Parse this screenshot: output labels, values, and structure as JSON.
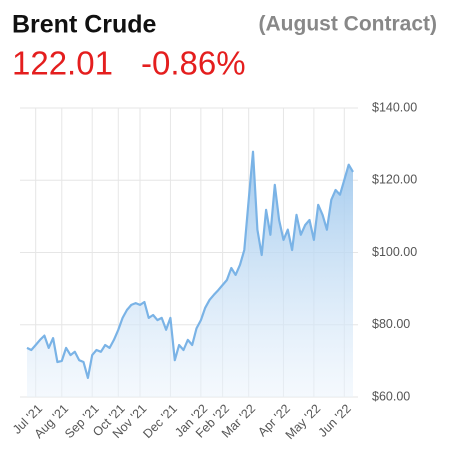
{
  "chart_data": {
    "type": "line",
    "title": "Brent Crude",
    "subtitle": "(August Contract)",
    "price": "122.01",
    "change": "-0.86%",
    "categories": [
      null,
      null,
      "Jul '21",
      null,
      null,
      null,
      null,
      null,
      "Aug '21",
      null,
      null,
      null,
      null,
      null,
      null,
      "Sep '21",
      null,
      null,
      null,
      null,
      null,
      "Oct '21",
      null,
      null,
      null,
      null,
      "Nov '21",
      null,
      null,
      null,
      null,
      null,
      null,
      "Dec '21",
      null,
      null,
      null,
      null,
      null,
      null,
      "Jan '22",
      null,
      null,
      null,
      null,
      "Feb '22",
      null,
      null,
      null,
      null,
      null,
      "Mar '22",
      null,
      null,
      null,
      null,
      null,
      null,
      null,
      "Apr '22",
      null,
      null,
      null,
      null,
      null,
      null,
      "May '22",
      null,
      null,
      null,
      null,
      null,
      null,
      "Jun '22",
      null,
      null
    ],
    "series": [
      {
        "name": "Brent Crude",
        "color": "#7ab3e6",
        "values": [
          73.6,
          73,
          74.4,
          75.8,
          77,
          73.6,
          76.3,
          69.7,
          70,
          73.6,
          71.6,
          72.5,
          70.2,
          69.7,
          65.3,
          71.6,
          73,
          72.5,
          74.4,
          73.6,
          75.8,
          78.6,
          81.9,
          84.1,
          85.5,
          86,
          85.5,
          86.3,
          81.9,
          82.7,
          81.3,
          81.9,
          78.6,
          81.9,
          70.2,
          74.4,
          73,
          75.8,
          74.4,
          79,
          81.3,
          84.7,
          86.9,
          88.3,
          89.6,
          91,
          92.4,
          95.7,
          93.8,
          96.6,
          100.7,
          114.6,
          127.9,
          106.3,
          99.3,
          111.8,
          104.9,
          118.7,
          109,
          103.5,
          106.3,
          100.7,
          110.4,
          104.9,
          107.6,
          109,
          103.5,
          113.2,
          110.4,
          106.3,
          114.6,
          117.3,
          116,
          120.1,
          124.3,
          122.3
        ]
      }
    ],
    "ylim": [
      60,
      140
    ],
    "yticks": [
      {
        "value": 60,
        "label": "$60.00"
      },
      {
        "value": 80,
        "label": "$80.00"
      },
      {
        "value": 100,
        "label": "$100.00"
      },
      {
        "value": 120,
        "label": "$120.00"
      },
      {
        "value": 140,
        "label": "$140.00"
      }
    ],
    "grid": true
  }
}
